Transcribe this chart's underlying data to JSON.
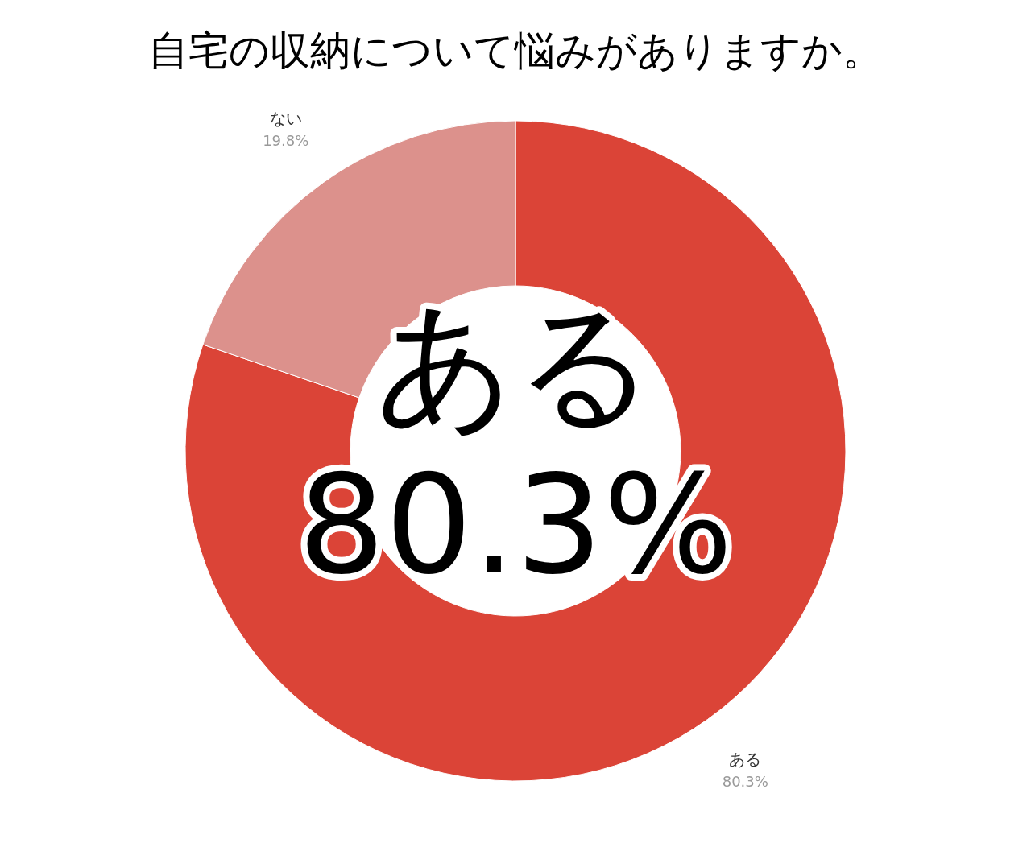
{
  "chart_data": {
    "type": "donut",
    "title": "自宅の収納について悩みがありますか。",
    "categories": [
      "ある",
      "ない"
    ],
    "values": [
      80.3,
      19.8
    ],
    "colors": [
      "#db4437",
      "#dc918c"
    ],
    "value_labels": [
      "80.3%",
      "19.8%"
    ],
    "annotations": [
      "ある",
      "80.3%"
    ]
  }
}
